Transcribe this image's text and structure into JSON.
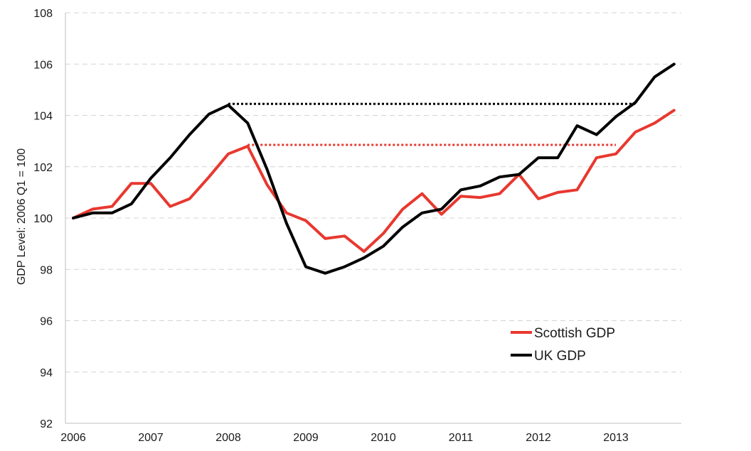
{
  "chart_data": {
    "type": "line",
    "title": "",
    "xlabel": "",
    "ylabel": "GDP Level: 2006 Q1 = 100",
    "ylim": [
      92,
      108
    ],
    "yticks": [
      92,
      94,
      96,
      98,
      100,
      102,
      104,
      106,
      108
    ],
    "xticks": [
      "2006",
      "2007",
      "2008",
      "2009",
      "2010",
      "2011",
      "2012",
      "2013"
    ],
    "grid": "horizontal dashed",
    "legend_position": "bottom-right",
    "x": [
      "2006 Q1",
      "2006 Q2",
      "2006 Q3",
      "2006 Q4",
      "2007 Q1",
      "2007 Q2",
      "2007 Q3",
      "2007 Q4",
      "2008 Q1",
      "2008 Q2",
      "2008 Q3",
      "2008 Q4",
      "2009 Q1",
      "2009 Q2",
      "2009 Q3",
      "2009 Q4",
      "2010 Q1",
      "2010 Q2",
      "2010 Q3",
      "2010 Q4",
      "2011 Q1",
      "2011 Q2",
      "2011 Q3",
      "2011 Q4",
      "2012 Q1",
      "2012 Q2",
      "2012 Q3",
      "2012 Q4",
      "2013 Q1",
      "2013 Q2",
      "2013 Q3",
      "2013 Q4"
    ],
    "series": [
      {
        "name": "Scottish GDP",
        "color": "#e8382f",
        "values": [
          100.0,
          100.35,
          100.45,
          101.35,
          101.35,
          100.45,
          100.75,
          101.6,
          102.5,
          102.8,
          101.3,
          100.2,
          99.9,
          99.2,
          99.3,
          98.7,
          99.4,
          100.35,
          100.95,
          100.15,
          100.85,
          100.8,
          100.95,
          101.7,
          100.75,
          101.0,
          101.1,
          102.35,
          102.5,
          103.35,
          103.7,
          104.2
        ]
      },
      {
        "name": "UK GDP",
        "color": "#000000",
        "values": [
          100.0,
          100.2,
          100.2,
          100.55,
          101.55,
          102.35,
          103.25,
          104.05,
          104.4,
          103.7,
          101.9,
          99.8,
          98.1,
          97.85,
          98.1,
          98.45,
          98.9,
          99.65,
          100.2,
          100.35,
          101.1,
          101.25,
          101.6,
          101.7,
          102.35,
          102.35,
          103.6,
          103.25,
          103.95,
          104.5,
          105.5,
          106.0
        ]
      }
    ],
    "reference_lines": [
      {
        "color": "#e8382f",
        "value": 102.85,
        "from": "2008 Q2",
        "to": "2013 Q1",
        "style": "dotted"
      },
      {
        "color": "#000000",
        "value": 104.45,
        "from": "2008 Q1",
        "to": "2013 Q2",
        "style": "dotted"
      }
    ]
  }
}
